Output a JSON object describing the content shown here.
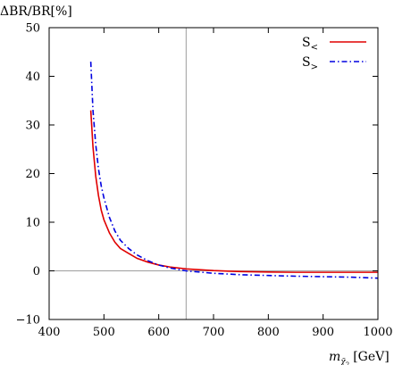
{
  "chart_data": {
    "type": "line",
    "title": "",
    "ylabel": "ΔBR/BR[%]",
    "xlabel": {
      "symbol": "m",
      "subscript": "χ̃",
      "subscript_sub": "2",
      "unit": "[GeV]"
    },
    "xlim": [
      400,
      1000
    ],
    "ylim": [
      -10,
      50
    ],
    "xticks": [
      400,
      500,
      600,
      700,
      800,
      900,
      1000
    ],
    "yticks": [
      -10,
      0,
      10,
      20,
      30,
      40,
      50
    ],
    "xtick_labels": [
      "400",
      "500",
      "600",
      "700",
      "800",
      "900",
      "1000"
    ],
    "ytick_labels": [
      "−10",
      "0",
      "10",
      "20",
      "30",
      "40",
      "50"
    ],
    "grid": false,
    "legend_position": "top-right",
    "reference_lines": {
      "horizontal_y": 0,
      "vertical_x": 650,
      "color": "#9e9e9e"
    },
    "series": [
      {
        "name": "S<",
        "name_base": "S",
        "name_sub": "<",
        "color": "#e00000",
        "dash": "solid",
        "x": [
          476,
          480,
          485,
          490,
          495,
          500,
          510,
          520,
          530,
          545,
          560,
          580,
          600,
          620,
          650,
          700,
          750,
          800,
          850,
          900,
          950,
          1000
        ],
        "y": [
          33,
          25.5,
          19.5,
          15.5,
          12.5,
          10.5,
          7.8,
          5.9,
          4.6,
          3.6,
          2.6,
          1.8,
          1.2,
          0.8,
          0.4,
          0.05,
          -0.15,
          -0.25,
          -0.3,
          -0.3,
          -0.3,
          -0.3
        ]
      },
      {
        "name": "S>",
        "name_base": "S",
        "name_sub": ">",
        "color": "#0000e0",
        "dash": "dashdot",
        "x": [
          476,
          480,
          485,
          490,
          495,
          500,
          510,
          520,
          530,
          545,
          560,
          580,
          600,
          620,
          650,
          700,
          750,
          800,
          850,
          900,
          950,
          1000
        ],
        "y": [
          43,
          33,
          26,
          21,
          17.5,
          15,
          11,
          8.2,
          6.3,
          4.6,
          3.3,
          2.1,
          1.2,
          0.6,
          0,
          -0.5,
          -0.8,
          -0.95,
          -1.1,
          -1.2,
          -1.3,
          -1.5
        ]
      }
    ]
  }
}
